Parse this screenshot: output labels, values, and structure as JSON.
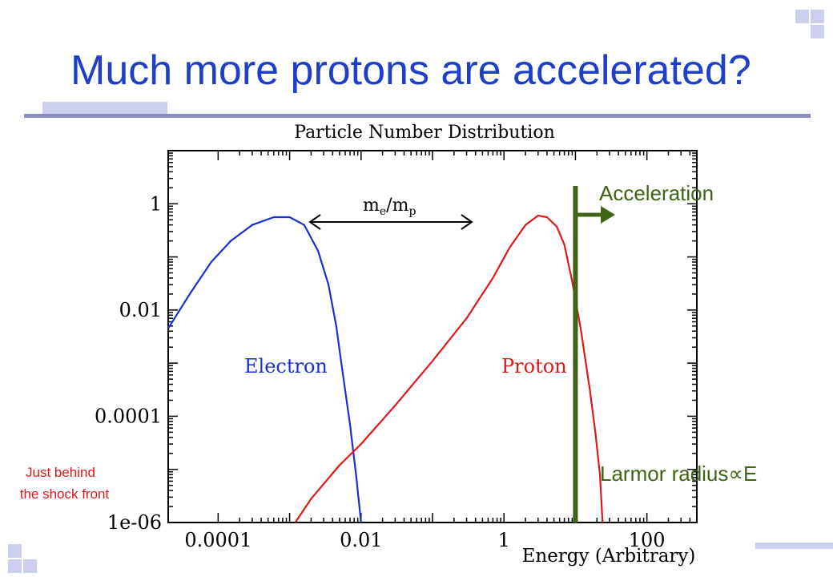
{
  "slide": {
    "title": "Much more protons are accelerated?",
    "note_line1": "Just behind",
    "note_line2": " the shock front",
    "acceleration_label": "Acceleration",
    "larmor_label": "Larmor radius∝E",
    "mass_ratio_label_m": "m",
    "mass_ratio_label_e": "e",
    "mass_ratio_label_slash": "/m",
    "mass_ratio_label_p": "p"
  },
  "colors": {
    "title": "#1f3fc8",
    "electron": "#1a2fd0",
    "proton": "#e01818",
    "marker": "#3f6414",
    "note": "#e01818",
    "deco": "#ccd0ee",
    "rule": "#8a8fc0"
  },
  "chart_data": {
    "type": "line",
    "title": "Particle Number Distribution",
    "xlabel": "Energy (Arbitrary)",
    "ylabel": "",
    "xscale": "log",
    "yscale": "log",
    "xlim": [
      2e-05,
      500
    ],
    "ylim": [
      1e-06,
      10
    ],
    "x_ticks": [
      "0.0001",
      "0.01",
      "1",
      "100"
    ],
    "y_ticks": [
      "1",
      "0.01",
      "0.0001",
      "1e-06"
    ],
    "marker_line_x": 10,
    "series": [
      {
        "name": "Electron",
        "color": "#1a2fd0",
        "points": [
          [
            2e-05,
            0.0045
          ],
          [
            4e-05,
            0.02
          ],
          [
            8e-05,
            0.08
          ],
          [
            0.00015,
            0.2
          ],
          [
            0.0003,
            0.4
          ],
          [
            0.0006,
            0.56
          ],
          [
            0.001,
            0.56
          ],
          [
            0.0016,
            0.4
          ],
          [
            0.0025,
            0.13
          ],
          [
            0.0035,
            0.03
          ],
          [
            0.0045,
            0.005
          ],
          [
            0.0055,
            0.0007
          ],
          [
            0.007,
            7e-05
          ],
          [
            0.0085,
            8e-06
          ],
          [
            0.01,
            1e-06
          ]
        ]
      },
      {
        "name": "Proton",
        "color": "#e01818",
        "points": [
          [
            0.0012,
            1e-06
          ],
          [
            0.002,
            2.8e-06
          ],
          [
            0.005,
            1.2e-05
          ],
          [
            0.01,
            3e-05
          ],
          [
            0.03,
            0.00016
          ],
          [
            0.1,
            0.0011
          ],
          [
            0.3,
            0.007
          ],
          [
            0.7,
            0.04
          ],
          [
            1.2,
            0.15
          ],
          [
            2,
            0.4
          ],
          [
            3,
            0.6
          ],
          [
            4,
            0.56
          ],
          [
            5.5,
            0.37
          ],
          [
            7,
            0.17
          ],
          [
            9,
            0.035
          ],
          [
            12,
            0.004
          ],
          [
            16,
            0.0003
          ],
          [
            19,
            5e-05
          ],
          [
            22,
            8e-06
          ],
          [
            24,
            1e-06
          ]
        ]
      }
    ]
  }
}
